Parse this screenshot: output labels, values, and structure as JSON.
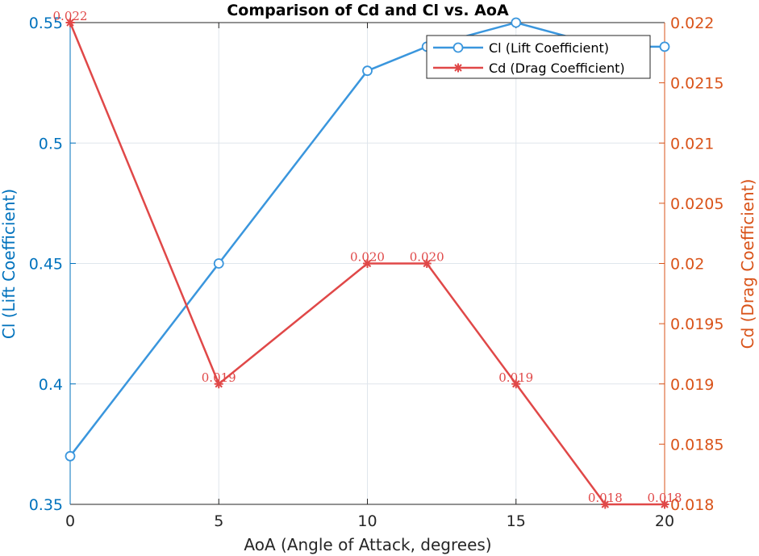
{
  "chart_data": {
    "type": "line",
    "title": "Comparison of Cd and Cl vs. AoA",
    "xlabel": "AoA (Angle of Attack, degrees)",
    "ylabel_left": "Cl (Lift Coefficient)",
    "ylabel_right": "Cd (Drag Coefficient)",
    "xlim": [
      0,
      20
    ],
    "ylim_left": [
      0.35,
      0.55
    ],
    "ylim_right": [
      0.018,
      0.022
    ],
    "x_ticks": [
      "0",
      "5",
      "10",
      "15",
      "20"
    ],
    "y_ticks_left": [
      "0.35",
      "0.4",
      "0.45",
      "0.5",
      "0.55"
    ],
    "y_ticks_right": [
      "0.018",
      "0.0185",
      "0.019",
      "0.0195",
      "0.02",
      "0.0205",
      "0.021",
      "0.0215",
      "0.022"
    ],
    "grid": true,
    "legend_position": "top-right",
    "series": [
      {
        "name": "Cl (Lift Coefficient)",
        "axis": "left",
        "marker": "circle",
        "color": "#3A96DD",
        "x": [
          0,
          5,
          10,
          12,
          15,
          18,
          20
        ],
        "y": [
          0.37,
          0.45,
          0.53,
          0.54,
          0.55,
          0.54,
          0.54
        ]
      },
      {
        "name": "Cd (Drag Coefficient)",
        "axis": "right",
        "marker": "asterisk",
        "color": "#E04848",
        "x": [
          0,
          5,
          10,
          12,
          15,
          18,
          20
        ],
        "y": [
          0.022,
          0.019,
          0.02,
          0.02,
          0.019,
          0.018,
          0.018
        ],
        "data_labels": [
          "0.022",
          "0.019",
          "0.020",
          "0.020",
          "0.019",
          "0.018",
          "0.018"
        ]
      }
    ]
  },
  "colors": {
    "left_axis": "#0072BD",
    "right_axis": "#D95319",
    "grid": "#dfe6ec"
  }
}
